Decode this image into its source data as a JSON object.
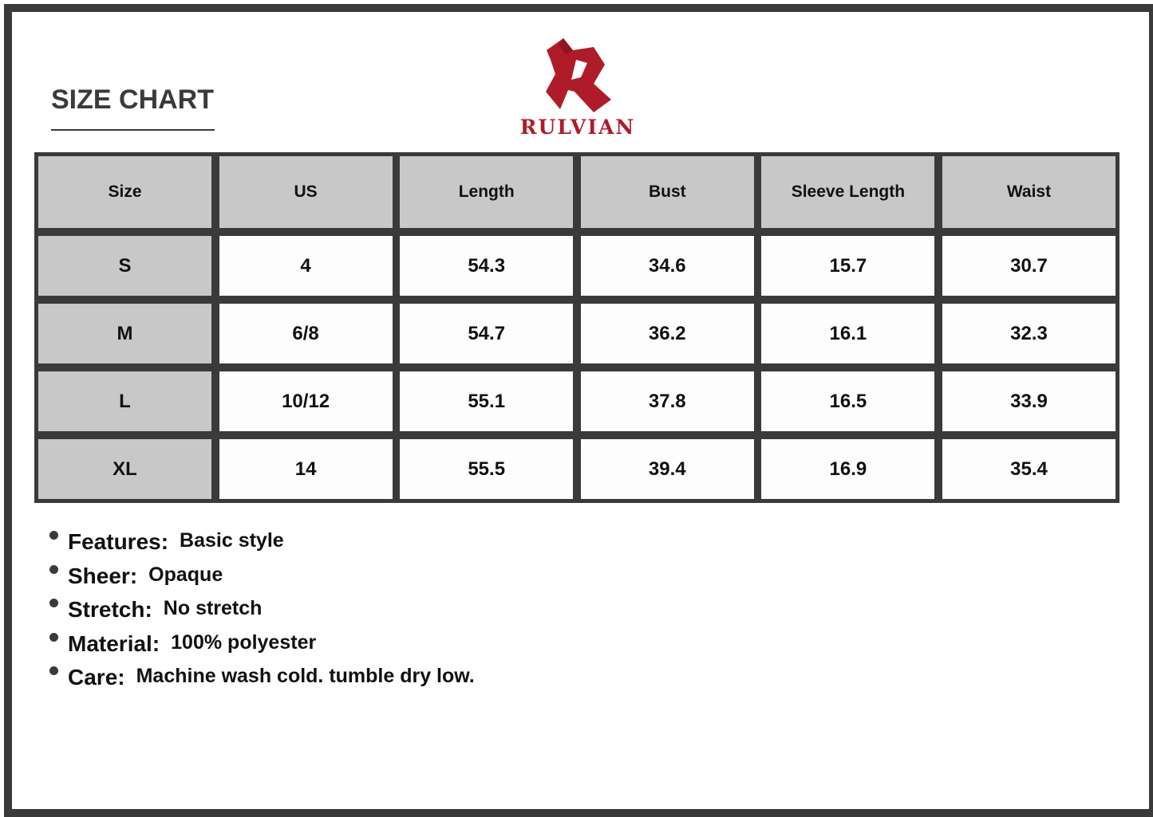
{
  "title": "SIZE CHART",
  "brand": {
    "name": "RULVIAN",
    "color": "#b01b2a"
  },
  "table": {
    "headers": [
      "Size",
      "US",
      "Length",
      "Bust",
      "Sleeve Length",
      "Waist"
    ],
    "rows": [
      [
        "S",
        "4",
        "54.3",
        "34.6",
        "15.7",
        "30.7"
      ],
      [
        "M",
        "6/8",
        "54.7",
        "36.2",
        "16.1",
        "32.3"
      ],
      [
        "L",
        "10/12",
        "55.1",
        "37.8",
        "16.5",
        "33.9"
      ],
      [
        "XL",
        "14",
        "55.5",
        "39.4",
        "16.9",
        "35.4"
      ]
    ]
  },
  "features": [
    {
      "label": "Features:",
      "value": "Basic style"
    },
    {
      "label": "Sheer:",
      "value": "Opaque"
    },
    {
      "label": "Stretch:",
      "value": "No stretch"
    },
    {
      "label": "Material:",
      "value": "100% polyester"
    },
    {
      "label": "Care:",
      "value": "Machine wash cold. tumble dry low."
    }
  ]
}
